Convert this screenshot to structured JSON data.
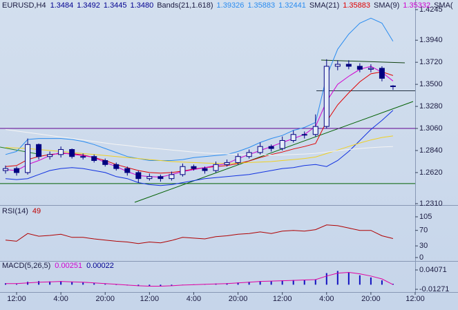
{
  "chart_data": [
    {
      "type": "candlestick",
      "title": "EURUSD,H4",
      "header_values": [
        "1.3484",
        "1.3492",
        "1.3445",
        "1.3480"
      ],
      "legend": [
        {
          "name": "Bands(21,1.618)",
          "values": [
            "1.39326",
            "1.35883",
            "1.32441"
          ],
          "color": "#2a8cf0"
        },
        {
          "name": "SMA(21)",
          "values": [
            "1.35883"
          ],
          "color": "#e00000"
        },
        {
          "name": "SMA(9)",
          "values": [
            "1.35332"
          ],
          "color": "#d000d0"
        },
        {
          "name": "SMA("
        }
      ],
      "open": [
        1.264,
        1.266,
        1.262,
        1.29,
        1.278,
        1.28,
        1.285,
        1.278,
        1.278,
        1.274,
        1.27,
        1.266,
        1.262,
        1.256,
        1.258,
        1.256,
        1.26,
        1.268,
        1.266,
        1.264,
        1.27,
        1.272,
        1.278,
        1.282,
        1.288,
        1.286,
        1.294,
        1.3,
        1.3,
        1.308,
        1.368,
        1.37,
        1.368,
        1.365,
        1.366,
        1.3484
      ],
      "high": [
        1.269,
        1.268,
        1.296,
        1.291,
        1.283,
        1.288,
        1.286,
        1.281,
        1.28,
        1.276,
        1.272,
        1.268,
        1.264,
        1.261,
        1.26,
        1.263,
        1.271,
        1.27,
        1.268,
        1.273,
        1.275,
        1.281,
        1.285,
        1.292,
        1.29,
        1.298,
        1.304,
        1.303,
        1.32,
        1.375,
        1.374,
        1.374,
        1.371,
        1.37,
        1.368,
        1.3492
      ],
      "low": [
        1.261,
        1.259,
        1.26,
        1.275,
        1.275,
        1.277,
        1.276,
        1.275,
        1.272,
        1.268,
        1.264,
        1.259,
        1.252,
        1.254,
        1.253,
        1.254,
        1.258,
        1.264,
        1.261,
        1.262,
        1.268,
        1.27,
        1.276,
        1.28,
        1.283,
        1.284,
        1.292,
        1.296,
        1.298,
        1.306,
        1.364,
        1.365,
        1.362,
        1.362,
        1.353,
        1.3445
      ],
      "close": [
        1.266,
        1.262,
        1.29,
        1.278,
        1.28,
        1.285,
        1.278,
        1.278,
        1.274,
        1.27,
        1.266,
        1.262,
        1.256,
        1.258,
        1.256,
        1.26,
        1.268,
        1.266,
        1.264,
        1.27,
        1.272,
        1.278,
        1.282,
        1.288,
        1.286,
        1.294,
        1.3,
        1.3,
        1.308,
        1.368,
        1.37,
        1.368,
        1.365,
        1.366,
        1.356,
        1.348
      ],
      "color": "#000080",
      "up_color": "#e6edf8",
      "down_color": "#000080",
      "series": [
        {
          "color": "#2a8cf0",
          "values": [
            1.28,
            1.283,
            1.295,
            1.296,
            1.296,
            1.296,
            1.295,
            1.293,
            1.29,
            1.286,
            1.282,
            1.278,
            1.276,
            1.274,
            1.274,
            1.274,
            1.275,
            1.277,
            1.278,
            1.279,
            1.28,
            1.283,
            1.287,
            1.292,
            1.296,
            1.299,
            1.304,
            1.307,
            1.312,
            1.358,
            1.385,
            1.4,
            1.411,
            1.416,
            1.411,
            1.393
          ]
        },
        {
          "color": "#e00000",
          "values": [
            1.268,
            1.269,
            1.275,
            1.278,
            1.28,
            1.281,
            1.281,
            1.2795,
            1.277,
            1.274,
            1.27,
            1.267,
            1.264,
            1.262,
            1.2615,
            1.262,
            1.2635,
            1.2655,
            1.267,
            1.268,
            1.269,
            1.271,
            1.2735,
            1.277,
            1.28,
            1.2825,
            1.2855,
            1.288,
            1.291,
            1.313,
            1.3295,
            1.3415,
            1.3525,
            1.3605,
            1.3625,
            1.3588
          ]
        },
        {
          "color": "#1030e0",
          "values": [
            1.256,
            1.255,
            1.256,
            1.26,
            1.264,
            1.266,
            1.267,
            1.266,
            1.264,
            1.262,
            1.258,
            1.256,
            1.252,
            1.25,
            1.249,
            1.25,
            1.252,
            1.254,
            1.256,
            1.257,
            1.258,
            1.259,
            1.26,
            1.262,
            1.264,
            1.266,
            1.267,
            1.269,
            1.27,
            1.268,
            1.274,
            1.283,
            1.294,
            1.305,
            1.314,
            1.324
          ]
        },
        {
          "color": "#d000d0",
          "values": [
            1.265,
            1.264,
            1.27,
            1.274,
            1.279,
            1.282,
            1.28,
            1.279,
            1.277,
            1.272,
            1.268,
            1.263,
            1.259,
            1.258,
            1.2575,
            1.26,
            1.263,
            1.265,
            1.267,
            1.269,
            1.271,
            1.276,
            1.28,
            1.284,
            1.288,
            1.292,
            1.296,
            1.3,
            1.308,
            1.333,
            1.35,
            1.358,
            1.365,
            1.368,
            1.362,
            1.3533
          ]
        },
        {
          "color": "#f0d020",
          "values": [
            1.287,
            1.2865,
            1.286,
            1.285,
            1.284,
            1.283,
            1.282,
            1.281,
            1.28,
            1.279,
            1.278,
            1.277,
            1.276,
            1.275,
            1.274,
            1.273,
            1.2725,
            1.272,
            1.2715,
            1.2712,
            1.2712,
            1.2715,
            1.272,
            1.2725,
            1.273,
            1.274,
            1.275,
            1.276,
            1.2775,
            1.281,
            1.2845,
            1.288,
            1.2915,
            1.2945,
            1.297,
            1.2985
          ]
        },
        {
          "color": "#f4f4f4",
          "values": [
            1.305,
            1.3035,
            1.302,
            1.3005,
            1.299,
            1.2975,
            1.296,
            1.2945,
            1.293,
            1.2915,
            1.29,
            1.289,
            1.2875,
            1.2865,
            1.2855,
            1.2845,
            1.2835,
            1.2825,
            1.2815,
            1.281,
            1.2805,
            1.28,
            1.2798,
            1.2796,
            1.2795,
            1.2796,
            1.28,
            1.2805,
            1.2812,
            1.2825,
            1.2838,
            1.285,
            1.286,
            1.2868,
            1.2875,
            1.288
          ]
        }
      ],
      "levels": [
        {
          "value": 1.306,
          "color": "#600090"
        },
        {
          "value": 1.251,
          "color": "#006000"
        }
      ],
      "xlim": [
        -0.5,
        37
      ],
      "ylim": [
        1.2296,
        1.4341
      ],
      "yticks": [
        1.4245,
        {
          "value": 1.394,
          "label": "1.3940"
        },
        {
          "value": 1.372,
          "label": "1.3720"
        },
        {
          "value": 1.35,
          "label": "1.3500"
        },
        {
          "value": 1.328,
          "label": "1.3280"
        },
        {
          "value": 1.306,
          "label": "1.3060"
        },
        {
          "value": 1.284,
          "label": "1.2840"
        },
        {
          "value": 1.262,
          "label": "1.2620"
        },
        {
          "value": 1.231,
          "label": "1.2310"
        }
      ]
    },
    {
      "type": "line",
      "title": "RSI(14)",
      "value_label": "49",
      "color": "#b00000",
      "values": [
        45,
        42,
        62,
        55,
        57,
        60,
        52,
        52,
        48,
        45,
        42,
        40,
        36,
        40,
        38,
        44,
        52,
        50,
        48,
        54,
        56,
        60,
        62,
        66,
        62,
        68,
        70,
        68,
        72,
        84,
        82,
        76,
        70,
        70,
        56,
        49
      ],
      "xlim": [
        -0.5,
        37
      ],
      "ylim": [
        -8.9,
        133.5
      ],
      "yticks": [
        105,
        70,
        30,
        0
      ]
    },
    {
      "type": "bar",
      "title": "MACD(5,26,5)",
      "value_labels": [
        {
          "text": "0.00251",
          "color": "#d000d0"
        },
        {
          "text": "0.00022",
          "color": "#000090"
        }
      ],
      "color": "#1010c0",
      "values": [
        0.004,
        0.002,
        0.008,
        0.01,
        0.009,
        0.01,
        0.008,
        0.006,
        0.004,
        0.002,
        0.0,
        -0.002,
        -0.004,
        -0.004,
        -0.004,
        -0.003,
        0.0,
        0.001,
        0.001,
        0.003,
        0.004,
        0.006,
        0.008,
        0.01,
        0.01,
        0.012,
        0.013,
        0.013,
        0.015,
        0.032,
        0.038,
        0.034,
        0.026,
        0.02,
        0.012,
        0.0025
      ],
      "signal": {
        "color": "#e000a0",
        "values": [
          0.003,
          0.003,
          0.005,
          0.007,
          0.008,
          0.009,
          0.008,
          0.007,
          0.005,
          0.003,
          0.001,
          -0.001,
          -0.003,
          -0.004,
          -0.004,
          -0.003,
          -0.001,
          0.0,
          0.001,
          0.002,
          0.003,
          0.005,
          0.007,
          0.009,
          0.01,
          0.011,
          0.012,
          0.013,
          0.014,
          0.024,
          0.032,
          0.034,
          0.03,
          0.024,
          0.016,
          0.0002
        ]
      },
      "xlim": [
        -0.5,
        37
      ],
      "ylim": [
        -0.0203,
        0.0636
      ],
      "yticks": [
        0.04071,
        -0.01271
      ],
      "xticks": [
        {
          "value": 1,
          "label": "12:00"
        },
        {
          "value": 5,
          "label": "4:00"
        },
        {
          "value": 9,
          "label": "20:00"
        },
        {
          "value": 13,
          "label": "12:00"
        },
        {
          "value": 17,
          "label": "4:00"
        },
        {
          "value": 21,
          "label": "20:00"
        },
        {
          "value": 25,
          "label": "12:00"
        },
        {
          "value": 29,
          "label": "4:00"
        },
        {
          "value": 33,
          "label": "20:00"
        },
        {
          "value": 37,
          "label": "12:00"
        }
      ]
    }
  ]
}
